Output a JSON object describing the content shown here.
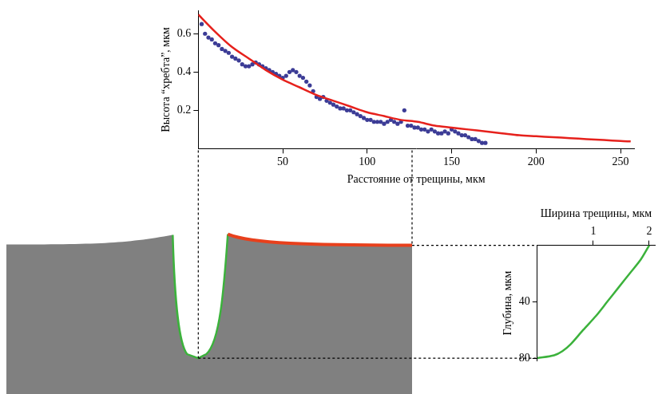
{
  "chart_data": [
    {
      "type": "scatter",
      "x_label": "Расстояние от трещины, мкм",
      "y_label": "Высота “хребта”, мкм",
      "xlim": [
        0,
        258
      ],
      "ylim": [
        0,
        0.72
      ],
      "xticks": [
        50,
        100,
        150,
        200,
        250
      ],
      "yticks": [
        0.2,
        0.4,
        0.6
      ],
      "grid": false,
      "series": [
        {
          "type": "scatter",
          "color": "#3c3c96",
          "marker": "circle",
          "x": [
            2,
            4,
            6,
            8,
            10,
            12,
            14,
            16,
            18,
            20,
            22,
            24,
            26,
            28,
            30,
            32,
            34,
            36,
            38,
            40,
            42,
            44,
            46,
            48,
            50,
            52,
            54,
            56,
            58,
            60,
            62,
            64,
            66,
            68,
            70,
            72,
            74,
            76,
            78,
            80,
            82,
            84,
            86,
            88,
            90,
            92,
            94,
            96,
            98,
            100,
            102,
            104,
            106,
            108,
            110,
            112,
            114,
            116,
            118,
            120,
            122,
            124,
            126,
            128,
            130,
            132,
            134,
            136,
            138,
            140,
            142,
            144,
            146,
            148,
            150,
            152,
            154,
            156,
            158,
            160,
            162,
            164,
            166,
            168,
            170
          ],
          "values": [
            0.65,
            0.6,
            0.58,
            0.57,
            0.55,
            0.54,
            0.52,
            0.51,
            0.5,
            0.48,
            0.47,
            0.46,
            0.44,
            0.43,
            0.43,
            0.44,
            0.45,
            0.44,
            0.43,
            0.42,
            0.41,
            0.4,
            0.39,
            0.38,
            0.37,
            0.38,
            0.4,
            0.41,
            0.4,
            0.38,
            0.37,
            0.35,
            0.33,
            0.3,
            0.27,
            0.26,
            0.27,
            0.25,
            0.24,
            0.23,
            0.22,
            0.21,
            0.21,
            0.2,
            0.2,
            0.19,
            0.18,
            0.17,
            0.16,
            0.15,
            0.15,
            0.14,
            0.14,
            0.14,
            0.13,
            0.14,
            0.15,
            0.14,
            0.13,
            0.14,
            0.2,
            0.12,
            0.12,
            0.11,
            0.11,
            0.1,
            0.1,
            0.09,
            0.1,
            0.09,
            0.08,
            0.08,
            0.09,
            0.08,
            0.1,
            0.09,
            0.08,
            0.07,
            0.07,
            0.06,
            0.05,
            0.05,
            0.04,
            0.03,
            0.03
          ]
        },
        {
          "type": "line",
          "color": "#e6211c",
          "line_style": "solid",
          "x": [
            0,
            10,
            20,
            30,
            40,
            50,
            60,
            70,
            80,
            90,
            100,
            110,
            120,
            130,
            140,
            150,
            160,
            170,
            180,
            190,
            200,
            210,
            220,
            230,
            240,
            250,
            256
          ],
          "values": [
            0.7,
            0.61,
            0.53,
            0.47,
            0.41,
            0.36,
            0.32,
            0.28,
            0.25,
            0.22,
            0.19,
            0.17,
            0.15,
            0.14,
            0.12,
            0.11,
            0.1,
            0.09,
            0.08,
            0.07,
            0.065,
            0.06,
            0.055,
            0.05,
            0.045,
            0.04,
            0.038
          ]
        }
      ]
    },
    {
      "type": "line",
      "x_label": "Ширина трещины, мкм",
      "y_label": "Глубина, мкм",
      "xlim": [
        0,
        2.1
      ],
      "ylim": [
        0,
        82
      ],
      "xticks": [
        1,
        2
      ],
      "yticks": [
        40,
        80
      ],
      "grid": false,
      "series": [
        {
          "type": "line",
          "color": "#3cb23c",
          "line_style": "solid",
          "x": [
            2.0,
            1.85,
            1.65,
            1.45,
            1.25,
            1.05,
            0.82,
            0.6,
            0.45,
            0.3,
            0
          ],
          "values": [
            0,
            10,
            20,
            30,
            40,
            50,
            60,
            70,
            75,
            78,
            80
          ]
        }
      ]
    }
  ]
}
